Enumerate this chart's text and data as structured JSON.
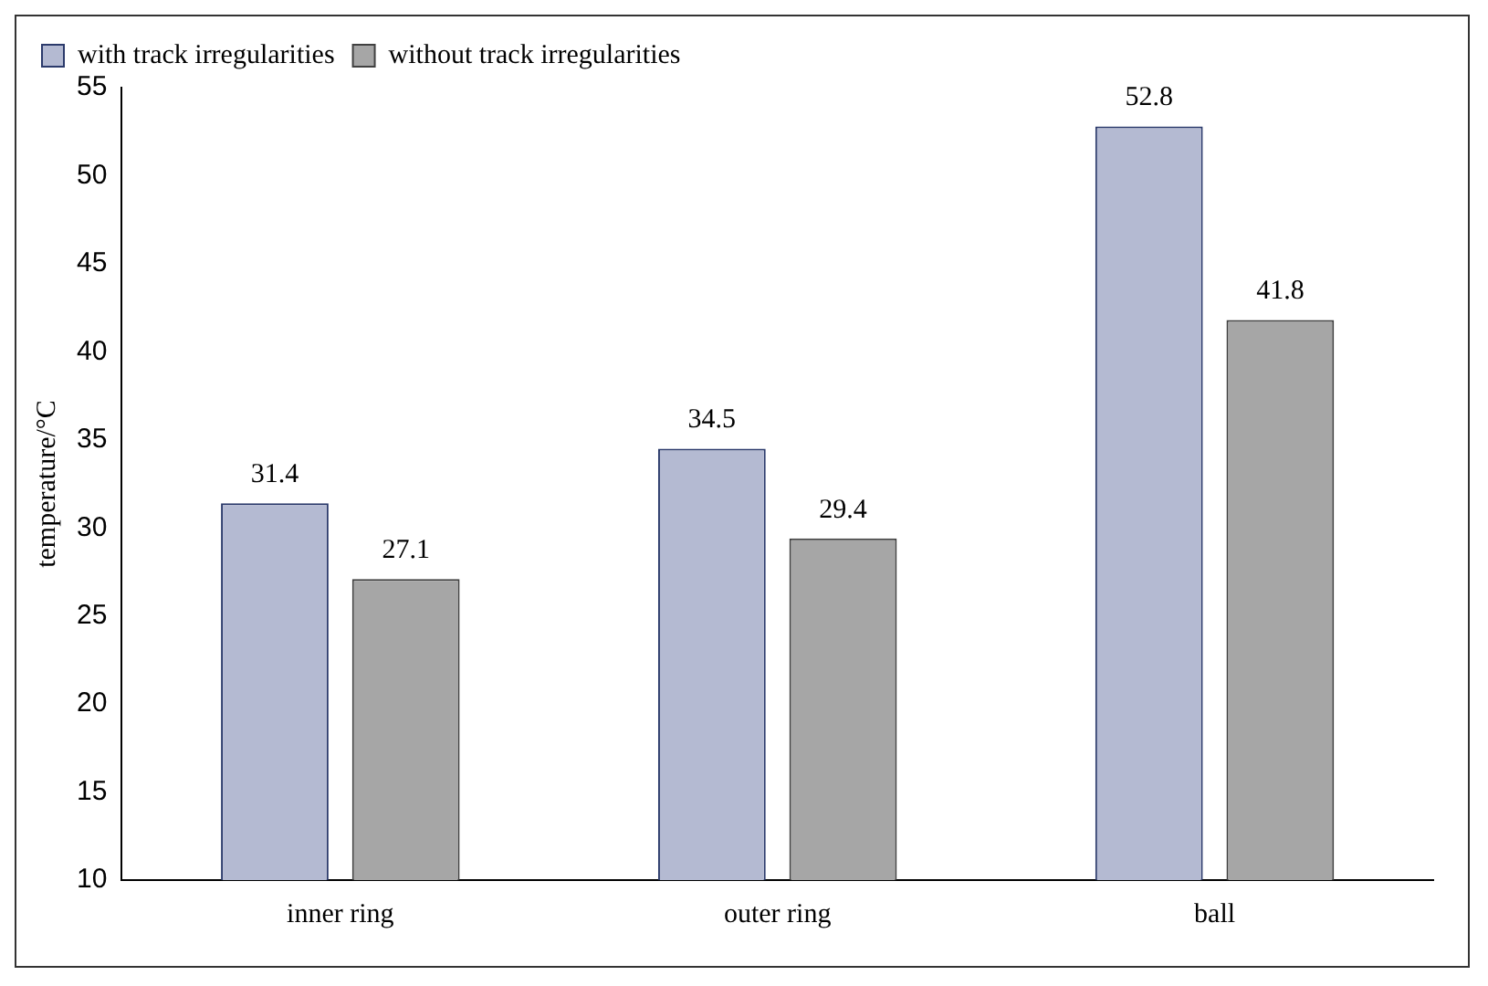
{
  "chart_data": {
    "type": "bar",
    "ylabel": "temperature/°C",
    "categories": [
      "inner ring",
      "outer ring",
      "ball"
    ],
    "series": [
      {
        "name": "with track irregularities",
        "color": "#b4bad2",
        "values": [
          31.4,
          34.5,
          52.8
        ]
      },
      {
        "name": "without track irregularities",
        "color": "#a6a6a6",
        "values": [
          27.1,
          29.4,
          41.8
        ]
      }
    ],
    "ylim": [
      10,
      55
    ],
    "yticks": [
      10,
      15,
      20,
      25,
      30,
      35,
      40,
      45,
      50,
      55
    ],
    "grid": false,
    "legend": "top left",
    "data_labels": true
  }
}
